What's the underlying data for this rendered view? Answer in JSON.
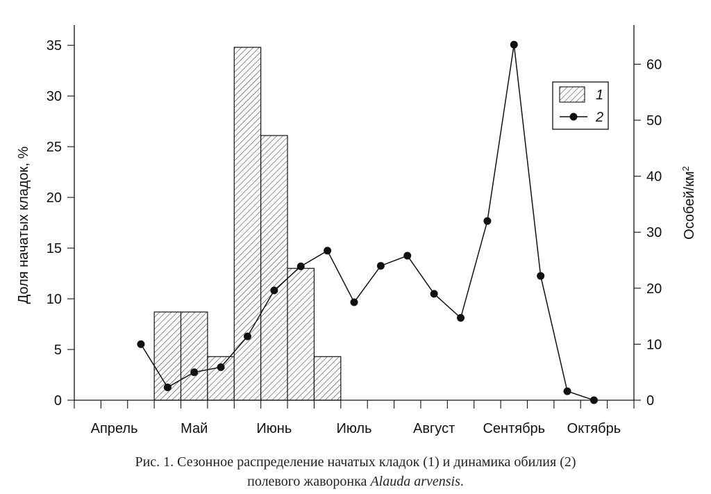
{
  "chart_data": {
    "type": "bar",
    "months": [
      "Апрель",
      "Май",
      "Июнь",
      "Июль",
      "Август",
      "Сентябрь",
      "Октябрь"
    ],
    "ylabel_left": "Доля начатых кладок, %",
    "ylabel_right": "Особей/км",
    "ylabel_right_sup": "2",
    "y_left_lim": [
      0,
      37
    ],
    "y_left_ticks": [
      0,
      5,
      10,
      15,
      20,
      25,
      30,
      35
    ],
    "y_right_lim": [
      0,
      67
    ],
    "y_right_ticks": [
      0,
      10,
      20,
      30,
      40,
      50,
      60
    ],
    "x_lim": [
      0,
      21
    ],
    "legend": {
      "position": "top-right",
      "entries": [
        "1",
        "2"
      ]
    },
    "series": [
      {
        "name": "1",
        "kind": "bar",
        "axis": "left",
        "bars": [
          {
            "x0": 3,
            "x1": 4,
            "value": 8.7
          },
          {
            "x0": 4,
            "x1": 5,
            "value": 8.7
          },
          {
            "x0": 5,
            "x1": 6,
            "value": 4.3
          },
          {
            "x0": 6,
            "x1": 7,
            "value": 34.8
          },
          {
            "x0": 7,
            "x1": 8,
            "value": 26.1
          },
          {
            "x0": 8,
            "x1": 9,
            "value": 13.0
          },
          {
            "x0": 9,
            "x1": 10,
            "value": 4.3
          }
        ]
      },
      {
        "name": "2",
        "kind": "line",
        "axis": "right",
        "points": [
          [
            2.5,
            10.0
          ],
          [
            3.5,
            2.3
          ],
          [
            4.5,
            5.0
          ],
          [
            5.5,
            5.9
          ],
          [
            6.5,
            11.4
          ],
          [
            7.5,
            19.6
          ],
          [
            8.5,
            23.9
          ],
          [
            9.5,
            26.7
          ],
          [
            10.5,
            17.5
          ],
          [
            11.5,
            24.0
          ],
          [
            12.5,
            25.8
          ],
          [
            13.5,
            19.0
          ],
          [
            14.5,
            14.7
          ],
          [
            15.5,
            32.0
          ],
          [
            16.5,
            63.5
          ],
          [
            17.5,
            22.2
          ],
          [
            18.5,
            1.6
          ],
          [
            19.5,
            0.0
          ]
        ]
      }
    ]
  },
  "caption": {
    "line1": "Рис. 1. Сезонное распределение начатых кладок (1) и динамика обилия (2)",
    "line2_prefix": "полевого жаворонка ",
    "line2_species": "Alauda arvensis",
    "line2_suffix": "."
  }
}
